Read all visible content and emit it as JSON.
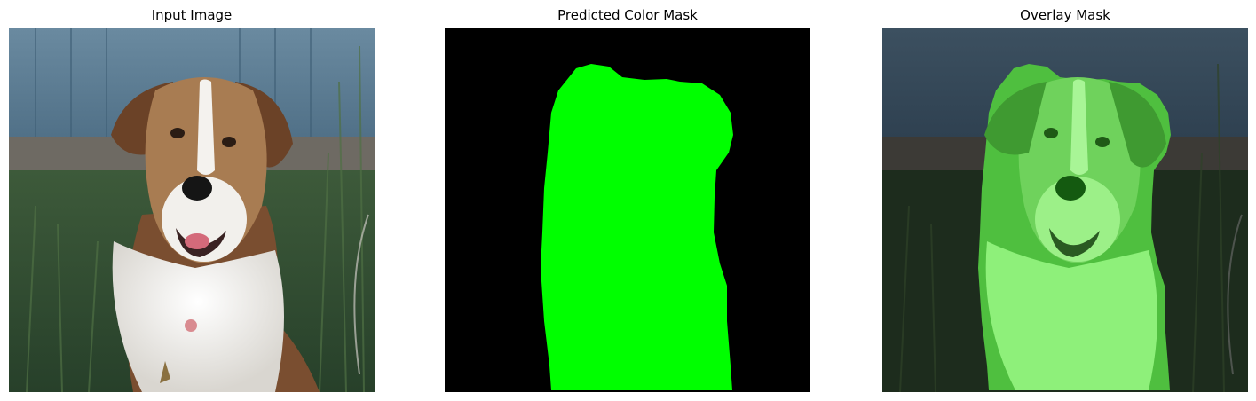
{
  "panels": [
    {
      "title": "Input Image"
    },
    {
      "title": "Predicted Color Mask"
    },
    {
      "title": "Overlay Mask"
    }
  ],
  "colors": {
    "mask_foreground": "#00ff00",
    "mask_background": "#000000",
    "fence": "#5b7f97",
    "grass": "#2f4a2e",
    "dog_brown": "#8a5a3a",
    "dog_white": "#f0efec"
  }
}
